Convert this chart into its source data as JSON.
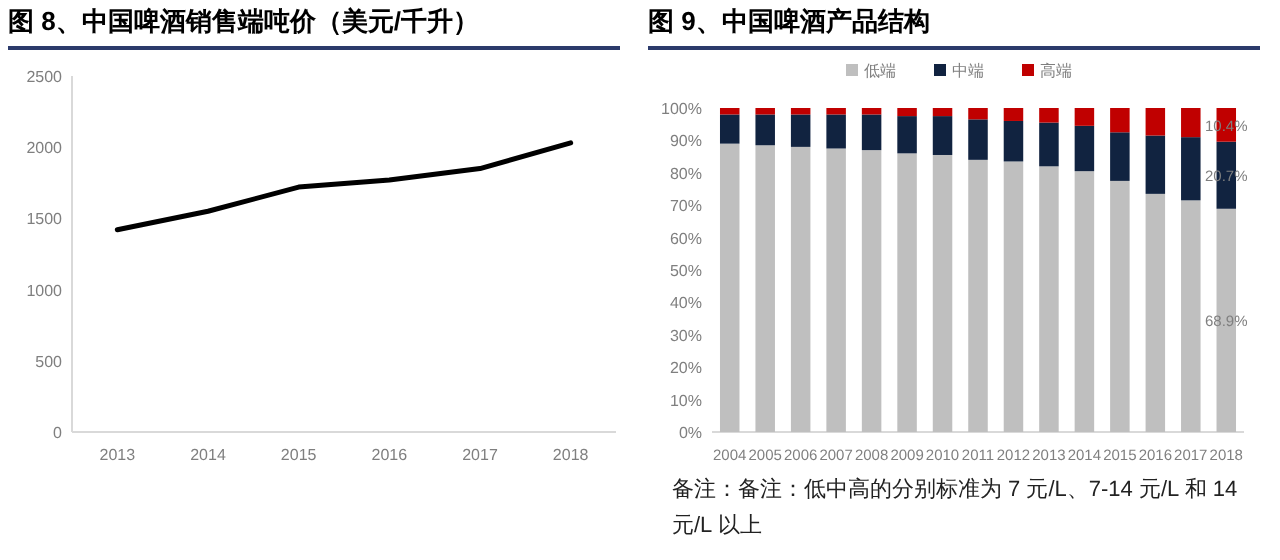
{
  "chart_data": [
    {
      "type": "line",
      "title": "图 8、中国啤酒销售端吨价（美元/千升）",
      "categories": [
        "2013",
        "2014",
        "2015",
        "2016",
        "2017",
        "2018"
      ],
      "series": [
        {
          "color": "#000000",
          "values": [
            1420,
            1550,
            1720,
            1770,
            1850,
            2030
          ]
        }
      ],
      "ylim": [
        0,
        2500
      ],
      "yticks": [
        0,
        500,
        1000,
        1500,
        2000,
        2500
      ],
      "grid": false,
      "legend": false,
      "marker": "none",
      "line_style": "solid"
    },
    {
      "type": "bar",
      "title": "图 9、中国啤酒产品结构",
      "stacked": true,
      "categories": [
        "2004",
        "2005",
        "2006",
        "2007",
        "2008",
        "2009",
        "2010",
        "2011",
        "2012",
        "2013",
        "2014",
        "2015",
        "2016",
        "2017",
        "2018"
      ],
      "series": [
        {
          "name": "低端",
          "color": "#bfbfbf",
          "values": [
            89,
            88.5,
            88,
            87.5,
            87,
            86,
            85.5,
            84,
            83.5,
            82,
            80.5,
            77.5,
            73.5,
            71.5,
            68.9
          ],
          "value_labels": [
            null,
            null,
            null,
            null,
            null,
            null,
            null,
            null,
            null,
            null,
            null,
            null,
            null,
            null,
            "68.9%"
          ]
        },
        {
          "name": "中端",
          "color": "#112340",
          "values": [
            9,
            9.5,
            10,
            10.5,
            11,
            11.5,
            12,
            12.5,
            12.5,
            13.5,
            14,
            15,
            18,
            19.5,
            20.7
          ],
          "value_labels": [
            null,
            null,
            null,
            null,
            null,
            null,
            null,
            null,
            null,
            null,
            null,
            null,
            null,
            null,
            "20.7%"
          ]
        },
        {
          "name": "高端",
          "color": "#c00000",
          "values": [
            2,
            2,
            2,
            2,
            2,
            2.5,
            2.5,
            3.5,
            4,
            4.5,
            5.5,
            7.5,
            8.5,
            9,
            10.4
          ],
          "value_labels": [
            null,
            null,
            null,
            null,
            null,
            null,
            null,
            null,
            null,
            null,
            null,
            null,
            null,
            null,
            "10.4%"
          ]
        }
      ],
      "ylim": [
        0,
        100
      ],
      "yticks": [
        {
          "value": 0,
          "label": "0%"
        },
        {
          "value": 10,
          "label": "10%"
        },
        {
          "value": 20,
          "label": "20%"
        },
        {
          "value": 30,
          "label": "30%"
        },
        {
          "value": 40,
          "label": "40%"
        },
        {
          "value": 50,
          "label": "50%"
        },
        {
          "value": 60,
          "label": "60%"
        },
        {
          "value": 70,
          "label": "70%"
        },
        {
          "value": 80,
          "label": "80%"
        },
        {
          "value": 90,
          "label": "90%"
        },
        {
          "value": 100,
          "label": "100%"
        }
      ],
      "grid": false,
      "legend": "top",
      "annotations": [
        "备注：备注：低中高的分别标准为 7 元/L、7-14 元/L 和 14 元/L 以上"
      ]
    }
  ]
}
